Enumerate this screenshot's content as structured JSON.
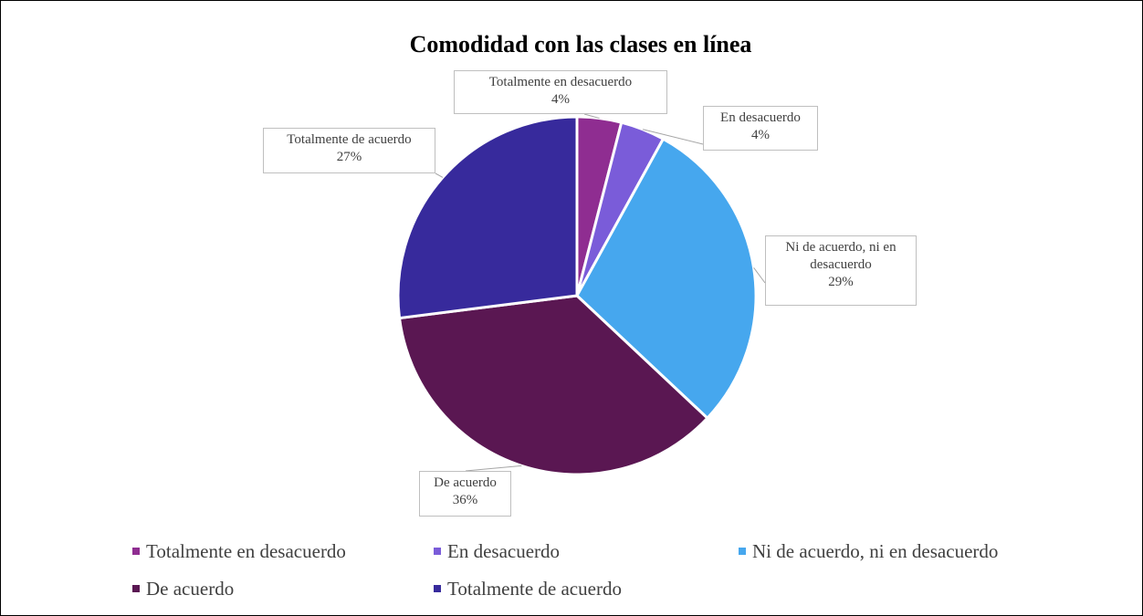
{
  "chart_data": {
    "type": "pie",
    "title": "Comodidad con las clases en línea",
    "categories": [
      "Totalmente en desacuerdo",
      "En desacuerdo",
      "Ni de acuerdo, ni en desacuerdo",
      "De acuerdo",
      "Totalmente de acuerdo"
    ],
    "values": [
      4,
      4,
      29,
      36,
      27
    ],
    "value_labels": [
      "4%",
      "4%",
      "29%",
      "36%",
      "27%"
    ],
    "colors": [
      "#8f2d91",
      "#7a5cd9",
      "#46a7ee",
      "#5a1752",
      "#372a9c"
    ],
    "legend": "bottom"
  }
}
